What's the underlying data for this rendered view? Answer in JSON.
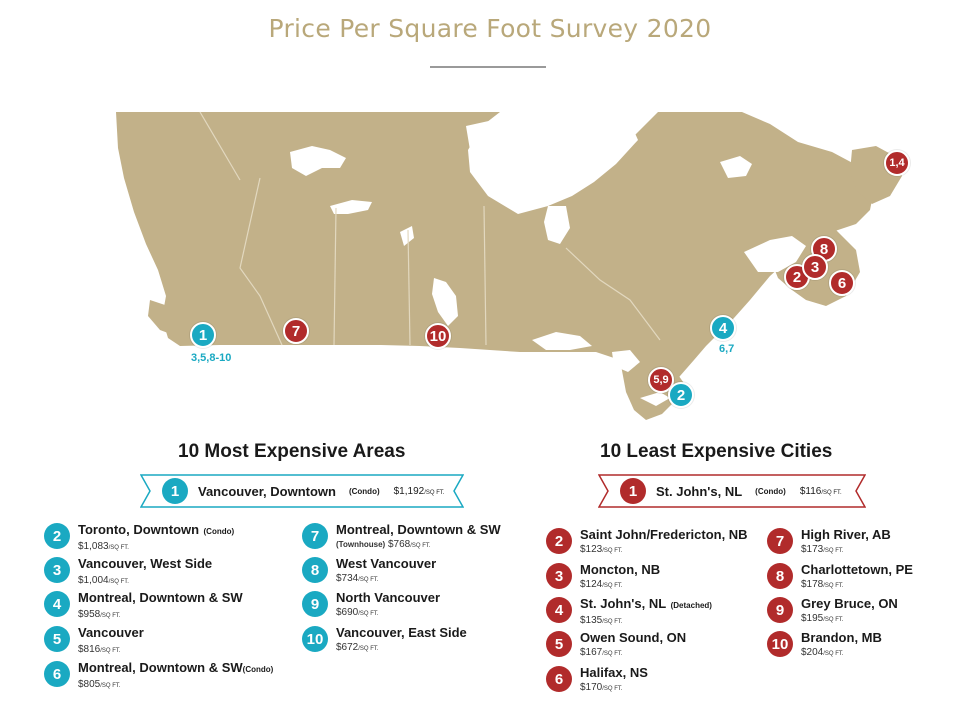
{
  "title": "Price Per Square Foot Survey 2020",
  "colors": {
    "land": "#c2b189",
    "title": "#b9a87a",
    "teal": "#1aa9c2",
    "red": "#b12b2b",
    "water": "#ffffff"
  },
  "map_markers": [
    {
      "label": "1",
      "color": "teal",
      "sub": "3,5,8-10"
    },
    {
      "label": "7",
      "color": "red"
    },
    {
      "label": "10",
      "color": "red"
    },
    {
      "label": "4",
      "color": "teal",
      "sub": "6,7"
    },
    {
      "label": "5,9",
      "color": "red"
    },
    {
      "label": "2",
      "color": "teal"
    },
    {
      "label": "1,4",
      "color": "red"
    },
    {
      "label": "8",
      "color": "red"
    },
    {
      "label": "2",
      "color": "red"
    },
    {
      "label": "3",
      "color": "red"
    },
    {
      "label": "6",
      "color": "red"
    }
  ],
  "expensive": {
    "heading": "10 Most Expensive Areas",
    "top": {
      "rank": "1",
      "name": "Vancouver, Downtown",
      "note": "(Condo)",
      "price": "$1,192",
      "unit": "/SQ FT."
    },
    "items": [
      {
        "rank": "2",
        "name": "Toronto, Downtown",
        "note": "(Condo)",
        "price": "$1,083",
        "unit": "/SQ FT."
      },
      {
        "rank": "3",
        "name": "Vancouver, West Side",
        "note": "",
        "price": "$1,004",
        "unit": "/SQ FT."
      },
      {
        "rank": "4",
        "name": "Montreal, Downtown & SW",
        "note": "",
        "price": "$958",
        "unit": "/SQ FT."
      },
      {
        "rank": "5",
        "name": "Vancouver",
        "note": "",
        "price": "$816",
        "unit": "/SQ FT."
      },
      {
        "rank": "6",
        "name": "Montreal, Downtown & SW",
        "note": "(Condo)",
        "price": "$805",
        "unit": "/SQ FT."
      },
      {
        "rank": "7",
        "name": "Montreal, Downtown & SW",
        "note": "(Townhouse)",
        "price": "$768",
        "unit": "/SQ FT."
      },
      {
        "rank": "8",
        "name": "West Vancouver",
        "note": "",
        "price": "$734",
        "unit": "/SQ FT."
      },
      {
        "rank": "9",
        "name": "North Vancouver",
        "note": "",
        "price": "$690",
        "unit": "/SQ FT."
      },
      {
        "rank": "10",
        "name": "Vancouver, East Side",
        "note": "",
        "price": "$672",
        "unit": "/SQ FT."
      }
    ]
  },
  "least": {
    "heading": "10 Least Expensive Cities",
    "top": {
      "rank": "1",
      "name": "St. John's, NL",
      "note": "(Condo)",
      "price": "$116",
      "unit": "/SQ FT."
    },
    "items": [
      {
        "rank": "2",
        "name": "Saint John/Fredericton, NB",
        "note": "",
        "price": "$123",
        "unit": "/SQ FT."
      },
      {
        "rank": "3",
        "name": "Moncton, NB",
        "note": "",
        "price": "$124",
        "unit": "/SQ FT."
      },
      {
        "rank": "4",
        "name": "St. John's, NL",
        "note": "(Detached)",
        "price": "$135",
        "unit": "/SQ FT."
      },
      {
        "rank": "5",
        "name": "Owen Sound, ON",
        "note": "",
        "price": "$167",
        "unit": "/SQ FT."
      },
      {
        "rank": "6",
        "name": "Halifax, NS",
        "note": "",
        "price": "$170",
        "unit": "/SQ FT."
      },
      {
        "rank": "7",
        "name": "High River, AB",
        "note": "",
        "price": "$173",
        "unit": "/SQ FT."
      },
      {
        "rank": "8",
        "name": "Charlottetown, PE",
        "note": "",
        "price": "$178",
        "unit": "/SQ FT."
      },
      {
        "rank": "9",
        "name": "Grey Bruce, ON",
        "note": "",
        "price": "$195",
        "unit": "/SQ FT."
      },
      {
        "rank": "10",
        "name": "Brandon, MB",
        "note": "",
        "price": "$204",
        "unit": "/SQ FT."
      }
    ]
  }
}
